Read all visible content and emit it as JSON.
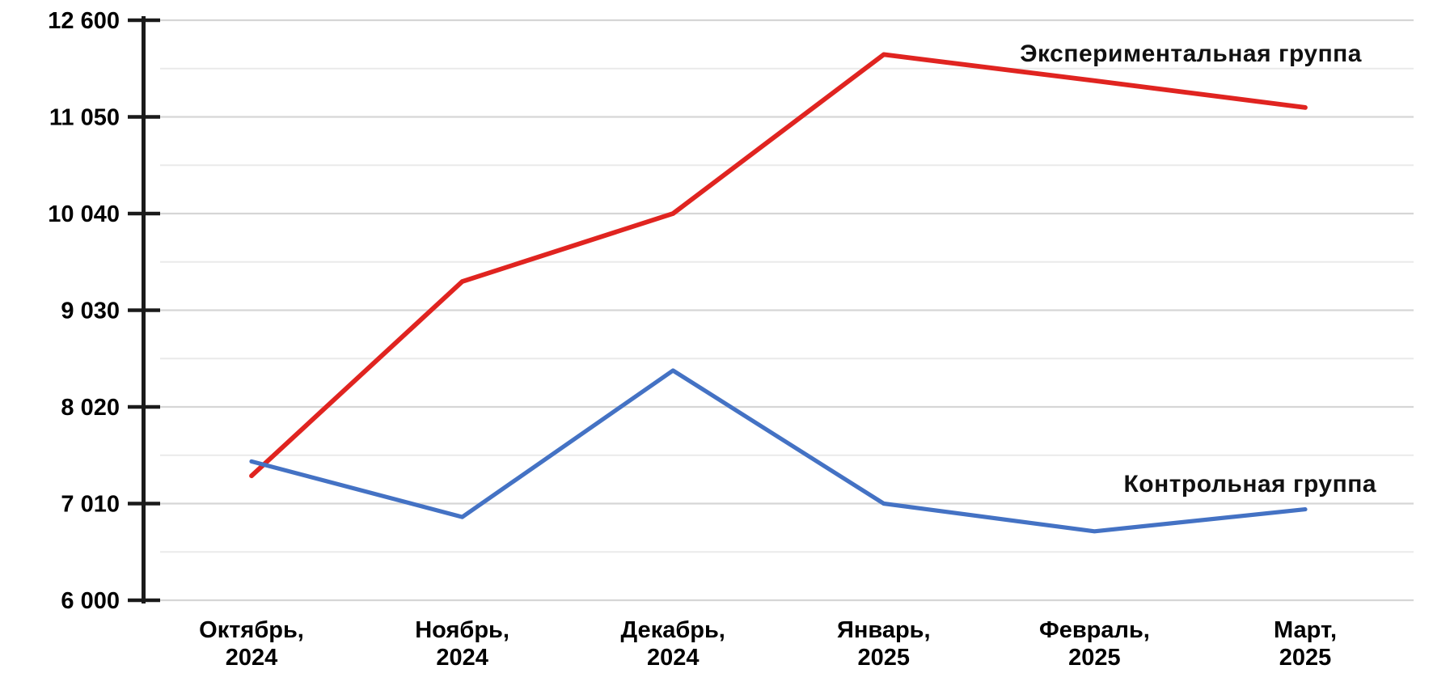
{
  "chart_data": {
    "type": "line",
    "title": "",
    "categories": [
      {
        "line1": "Октябрь,",
        "line2": "2024"
      },
      {
        "line1": "Ноябрь,",
        "line2": "2024"
      },
      {
        "line1": "Декабрь,",
        "line2": "2024"
      },
      {
        "line1": "Январь,",
        "line2": "2025"
      },
      {
        "line1": "Февраль,",
        "line2": "2025"
      },
      {
        "line1": "Март,",
        "line2": "2025"
      }
    ],
    "series": [
      {
        "name": "Экспериментальная группа",
        "color": "#e02420",
        "values": [
          7300,
          9330,
          10040,
          12050,
          11630,
          11200
        ]
      },
      {
        "name": "Контрольная группа",
        "color": "#4472c4",
        "values": [
          7450,
          6870,
          8400,
          7010,
          6720,
          6950
        ]
      }
    ],
    "y_axis": {
      "tick_labels": [
        "12 600",
        "11 050",
        "10 040",
        "9 030",
        "8 020",
        "7 010",
        "6 000"
      ],
      "tick_values": [
        12600,
        11050,
        10040,
        9030,
        8020,
        7010,
        6000
      ],
      "min": 6000,
      "max": 12600,
      "minor_gridlines": true
    },
    "x_axis": {
      "label": ""
    },
    "legend": {
      "position": "inline-right",
      "entries": [
        "Экспериментальная группа",
        "Контрольная группа"
      ]
    },
    "style": {
      "axis_color": "#1a1a1a",
      "major_gridline_color": "#d6d6d6",
      "minor_gridline_color": "#eaeaea",
      "text_color": "#000000",
      "background": "#ffffff"
    }
  }
}
